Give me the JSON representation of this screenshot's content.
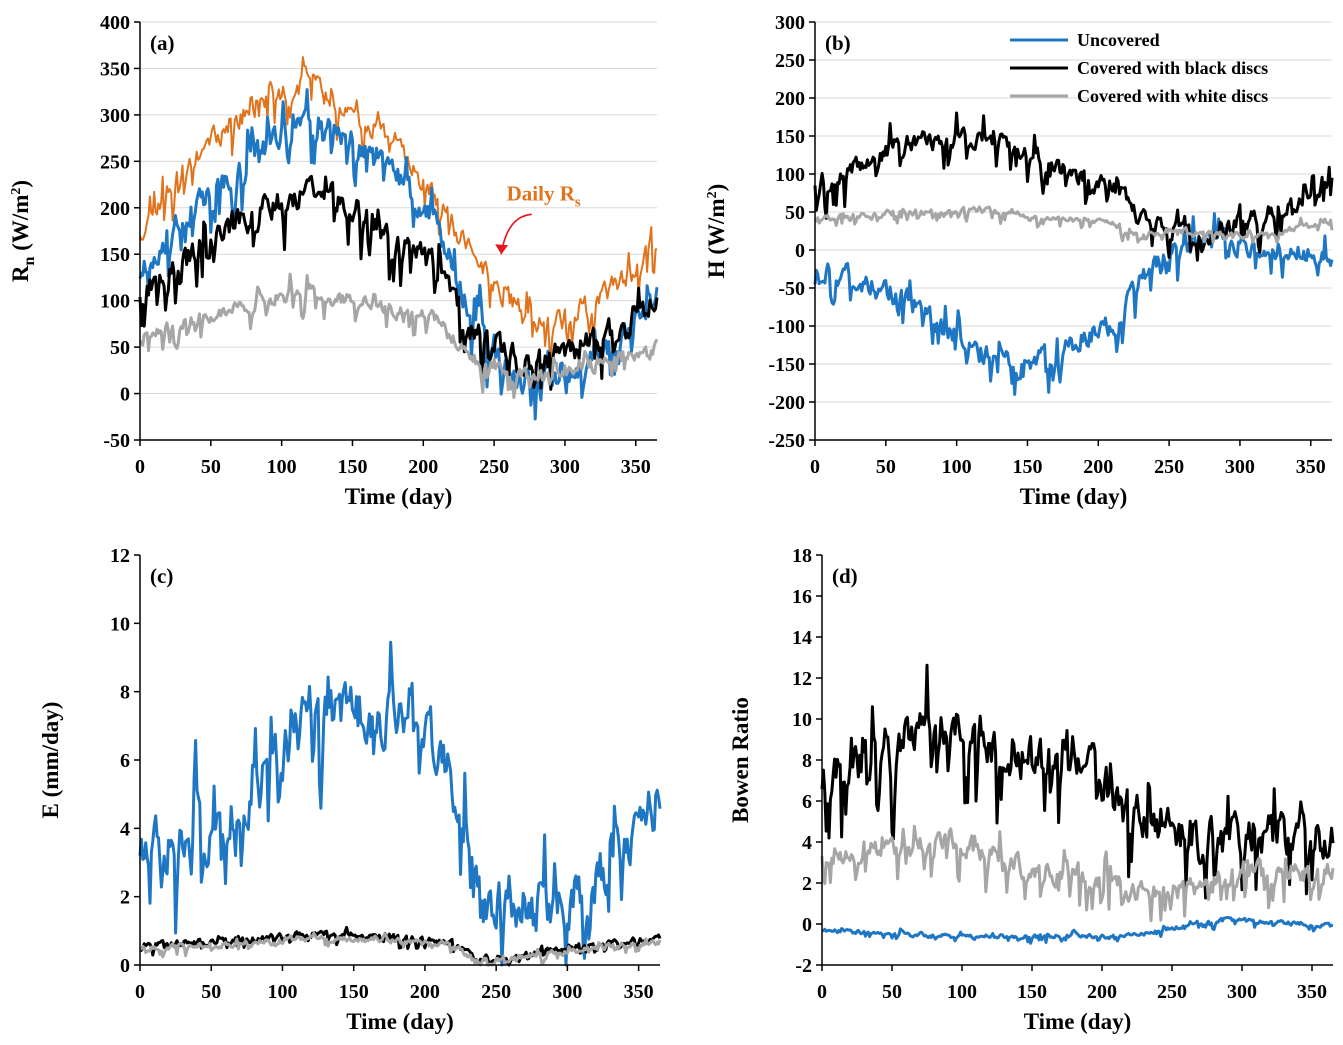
{
  "colors": {
    "uncovered": "#1f77c4",
    "black_discs": "#000000",
    "white_discs": "#a6a6a6",
    "daily_rs": "#e0731c",
    "arrow": "#e8151b",
    "grid": "#d9d9d9"
  },
  "legend": [
    {
      "key": "uncovered",
      "label": "Uncovered"
    },
    {
      "key": "black_discs",
      "label": "Covered with black discs"
    },
    {
      "key": "white_discs",
      "label": "Covered with white discs"
    }
  ],
  "chart_data": [
    {
      "id": "a",
      "panel_label": "(a)",
      "type": "line",
      "xlabel": "Time (day)",
      "ylabel": "Rn (W/m²)",
      "ylabel_parts": {
        "main": "R",
        "sub": "n",
        "rest": " (W/m",
        "sup": "2",
        "end": ")"
      },
      "xlim": [
        0,
        365
      ],
      "ylim": [
        -50,
        400
      ],
      "xticks": [
        0,
        50,
        100,
        150,
        200,
        250,
        300,
        350
      ],
      "yticks": [
        -50,
        0,
        50,
        100,
        150,
        200,
        250,
        300,
        350,
        400
      ],
      "grid": "horizontal",
      "annotation": {
        "main": "Daily R",
        "sub": "s",
        "x": 285,
        "y": 208,
        "arrow_to": [
          255,
          150
        ]
      },
      "series": [
        {
          "key": "daily_rs",
          "name": "Daily Rs",
          "anchors": [
            [
              0,
              175
            ],
            [
              30,
              240
            ],
            [
              60,
              285
            ],
            [
              90,
              320
            ],
            [
              120,
              335
            ],
            [
              150,
              300
            ],
            [
              180,
              270
            ],
            [
              210,
              210
            ],
            [
              230,
              160
            ],
            [
              250,
              120
            ],
            [
              270,
              85
            ],
            [
              290,
              75
            ],
            [
              320,
              95
            ],
            [
              345,
              130
            ],
            [
              365,
              170
            ]
          ],
          "amp": 42,
          "seed": 11
        },
        {
          "key": "uncovered",
          "anchors": [
            [
              0,
              130
            ],
            [
              30,
              190
            ],
            [
              60,
              230
            ],
            [
              90,
              270
            ],
            [
              120,
              300
            ],
            [
              150,
              275
            ],
            [
              180,
              240
            ],
            [
              210,
              180
            ],
            [
              230,
              100
            ],
            [
              250,
              40
            ],
            [
              270,
              10
            ],
            [
              290,
              15
            ],
            [
              320,
              35
            ],
            [
              345,
              70
            ],
            [
              365,
              110
            ]
          ],
          "amp": 48,
          "seed": 23
        },
        {
          "key": "black_discs",
          "anchors": [
            [
              0,
              110
            ],
            [
              30,
              140
            ],
            [
              60,
              180
            ],
            [
              90,
              200
            ],
            [
              120,
              220
            ],
            [
              150,
              205
            ],
            [
              180,
              160
            ],
            [
              210,
              140
            ],
            [
              230,
              70
            ],
            [
              250,
              55
            ],
            [
              270,
              30
            ],
            [
              290,
              40
            ],
            [
              320,
              55
            ],
            [
              345,
              80
            ],
            [
              365,
              100
            ]
          ],
          "amp": 50,
          "seed": 37
        },
        {
          "key": "white_discs",
          "anchors": [
            [
              0,
              60
            ],
            [
              30,
              75
            ],
            [
              60,
              90
            ],
            [
              90,
              100
            ],
            [
              120,
              110
            ],
            [
              150,
              100
            ],
            [
              180,
              90
            ],
            [
              210,
              80
            ],
            [
              230,
              40
            ],
            [
              250,
              30
            ],
            [
              270,
              20
            ],
            [
              290,
              25
            ],
            [
              320,
              30
            ],
            [
              345,
              40
            ],
            [
              365,
              50
            ]
          ],
          "amp": 26,
          "seed": 41
        }
      ]
    },
    {
      "id": "b",
      "panel_label": "(b)",
      "type": "line",
      "xlabel": "Time (day)",
      "ylabel": "H (W/m²)",
      "ylabel_parts": {
        "main": "H (W/m",
        "sub": "",
        "rest": "",
        "sup": "2",
        "end": ")"
      },
      "xlim": [
        0,
        365
      ],
      "ylim": [
        -250,
        300
      ],
      "xticks": [
        0,
        50,
        100,
        150,
        200,
        250,
        300,
        350
      ],
      "yticks": [
        -250,
        -200,
        -150,
        -100,
        -50,
        0,
        50,
        100,
        150,
        200,
        250,
        300
      ],
      "grid": "horizontal",
      "legend": true,
      "series": [
        {
          "key": "uncovered",
          "anchors": [
            [
              0,
              -20
            ],
            [
              30,
              -40
            ],
            [
              60,
              -60
            ],
            [
              90,
              -100
            ],
            [
              120,
              -140
            ],
            [
              150,
              -150
            ],
            [
              180,
              -120
            ],
            [
              210,
              -100
            ],
            [
              230,
              -40
            ],
            [
              250,
              0
            ],
            [
              270,
              10
            ],
            [
              290,
              5
            ],
            [
              320,
              5
            ],
            [
              345,
              0
            ],
            [
              365,
              -20
            ]
          ],
          "amp": 50,
          "seed": 53
        },
        {
          "key": "black_discs",
          "anchors": [
            [
              0,
              90
            ],
            [
              30,
              110
            ],
            [
              60,
              140
            ],
            [
              90,
              145
            ],
            [
              120,
              150
            ],
            [
              150,
              130
            ],
            [
              180,
              100
            ],
            [
              210,
              90
            ],
            [
              230,
              40
            ],
            [
              250,
              30
            ],
            [
              270,
              20
            ],
            [
              290,
              30
            ],
            [
              320,
              50
            ],
            [
              345,
              70
            ],
            [
              365,
              100
            ]
          ],
          "amp": 42,
          "seed": 67
        },
        {
          "key": "white_discs",
          "anchors": [
            [
              0,
              40
            ],
            [
              30,
              45
            ],
            [
              60,
              50
            ],
            [
              90,
              50
            ],
            [
              120,
              55
            ],
            [
              150,
              40
            ],
            [
              180,
              40
            ],
            [
              210,
              35
            ],
            [
              230,
              20
            ],
            [
              250,
              25
            ],
            [
              270,
              25
            ],
            [
              290,
              20
            ],
            [
              320,
              20
            ],
            [
              345,
              30
            ],
            [
              365,
              40
            ]
          ],
          "amp": 14,
          "seed": 71
        }
      ]
    },
    {
      "id": "c",
      "panel_label": "(c)",
      "type": "line",
      "xlabel": "Time (day)",
      "ylabel": "E (mm/day)",
      "ylabel_parts": {
        "main": "E (mm/day)",
        "sub": "",
        "rest": "",
        "sup": "",
        "end": ""
      },
      "xlim": [
        0,
        365
      ],
      "ylim": [
        0,
        12
      ],
      "xticks": [
        0,
        50,
        100,
        150,
        200,
        250,
        300,
        350
      ],
      "yticks": [
        0,
        2,
        4,
        6,
        8,
        10,
        12
      ],
      "grid": "none",
      "series": [
        {
          "key": "uncovered",
          "anchors": [
            [
              0,
              3.5
            ],
            [
              30,
              3.5
            ],
            [
              60,
              4.0
            ],
            [
              90,
              5.5
            ],
            [
              120,
              7.5
            ],
            [
              150,
              7.5
            ],
            [
              180,
              7.0
            ],
            [
              210,
              6.5
            ],
            [
              230,
              4.0
            ],
            [
              240,
              1.5
            ],
            [
              260,
              2.0
            ],
            [
              290,
              1.5
            ],
            [
              320,
              2.5
            ],
            [
              345,
              3.5
            ],
            [
              365,
              5.0
            ]
          ],
          "amp": 2.6,
          "seed": 83
        },
        {
          "key": "black_discs",
          "anchors": [
            [
              0,
              0.6
            ],
            [
              60,
              0.7
            ],
            [
              120,
              0.9
            ],
            [
              180,
              0.8
            ],
            [
              220,
              0.7
            ],
            [
              235,
              0.15
            ],
            [
              270,
              0.3
            ],
            [
              300,
              0.5
            ],
            [
              365,
              0.8
            ]
          ],
          "amp": 0.35,
          "seed": 97
        },
        {
          "key": "white_discs",
          "anchors": [
            [
              0,
              0.5
            ],
            [
              60,
              0.6
            ],
            [
              120,
              0.8
            ],
            [
              180,
              0.7
            ],
            [
              220,
              0.6
            ],
            [
              235,
              0.1
            ],
            [
              270,
              0.25
            ],
            [
              300,
              0.4
            ],
            [
              365,
              0.7
            ]
          ],
          "amp": 0.3,
          "seed": 101
        }
      ]
    },
    {
      "id": "d",
      "panel_label": "(d)",
      "type": "line",
      "xlabel": "Time (day)",
      "ylabel": "Bowen Ratio",
      "ylabel_parts": {
        "main": "Bowen Ratio",
        "sub": "",
        "rest": "",
        "sup": "",
        "end": ""
      },
      "xlim": [
        0,
        365
      ],
      "ylim": [
        -2,
        18
      ],
      "xticks": [
        0,
        50,
        100,
        150,
        200,
        250,
        300,
        350
      ],
      "yticks": [
        -2,
        0,
        2,
        4,
        6,
        8,
        10,
        12,
        14,
        16,
        18
      ],
      "grid": "none",
      "series": [
        {
          "key": "black_discs",
          "anchors": [
            [
              0,
              7
            ],
            [
              30,
              8
            ],
            [
              60,
              9
            ],
            [
              90,
              10
            ],
            [
              120,
              9
            ],
            [
              150,
              8
            ],
            [
              170,
              9
            ],
            [
              190,
              8
            ],
            [
              210,
              6
            ],
            [
              230,
              5
            ],
            [
              250,
              5
            ],
            [
              270,
              4
            ],
            [
              290,
              4
            ],
            [
              320,
              4.5
            ],
            [
              345,
              4
            ],
            [
              365,
              4
            ]
          ],
          "amp": 3.8,
          "seed": 113
        },
        {
          "key": "white_discs",
          "anchors": [
            [
              0,
              3.5
            ],
            [
              30,
              3.5
            ],
            [
              60,
              3.8
            ],
            [
              90,
              4.0
            ],
            [
              120,
              3.5
            ],
            [
              150,
              2.5
            ],
            [
              180,
              2.5
            ],
            [
              210,
              2.0
            ],
            [
              230,
              1.5
            ],
            [
              250,
              1.5
            ],
            [
              270,
              2.0
            ],
            [
              290,
              2.5
            ],
            [
              320,
              2.5
            ],
            [
              345,
              2.5
            ],
            [
              365,
              2.5
            ]
          ],
          "amp": 1.8,
          "seed": 127
        },
        {
          "key": "uncovered",
          "anchors": [
            [
              0,
              -0.3
            ],
            [
              30,
              -0.4
            ],
            [
              60,
              -0.5
            ],
            [
              90,
              -0.6
            ],
            [
              120,
              -0.6
            ],
            [
              150,
              -0.6
            ],
            [
              180,
              -0.6
            ],
            [
              210,
              -0.6
            ],
            [
              230,
              -0.5
            ],
            [
              250,
              -0.2
            ],
            [
              270,
              0.1
            ],
            [
              290,
              0.2
            ],
            [
              320,
              0.1
            ],
            [
              345,
              0
            ],
            [
              365,
              -0.1
            ]
          ],
          "amp": 0.35,
          "seed": 131
        }
      ]
    }
  ]
}
